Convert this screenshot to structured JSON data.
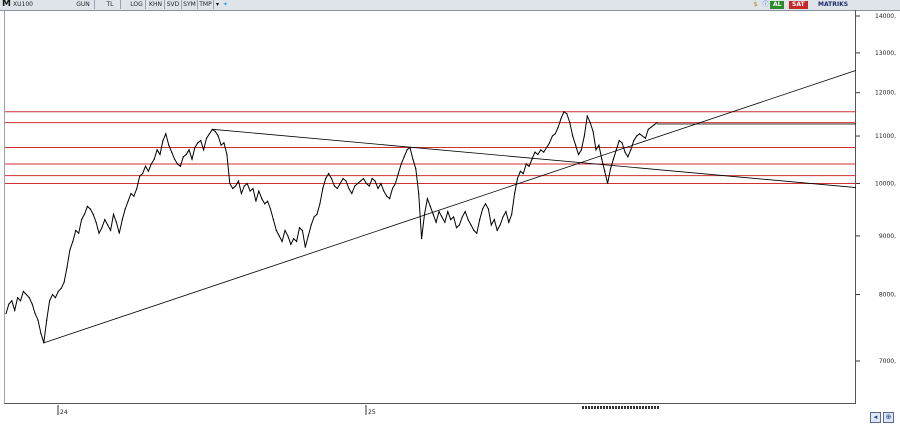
{
  "toolbar": {
    "logo": "M",
    "symbol": "XU100",
    "buttons": [
      "GUN",
      "TL",
      "LOG",
      "KHN",
      "SVD",
      "SYM",
      "TMP"
    ],
    "buy_label": "AL",
    "sell_label": "SAT",
    "matriks_label": "MATRIKS",
    "icons": [
      "chevron-down-icon",
      "twitter-icon",
      "dollar-icon",
      "info-icon"
    ]
  },
  "colors": {
    "price_line": "#000000",
    "trendline": "#000000",
    "horizontal_levels": "#d03030",
    "resistance_line": "#000000",
    "buy": "#2e8b2e",
    "sell": "#c62828"
  },
  "chart_data": {
    "type": "line",
    "title": "",
    "xlabel": "",
    "ylabel": "",
    "ylim": [
      6500,
      14300
    ],
    "y_ticks": [
      7000,
      8000,
      9000,
      10000,
      11000,
      12000,
      13000,
      14000
    ],
    "y_tick_labels": [
      "7000,",
      "8000,",
      "9000,",
      "10000,",
      "11000,",
      "12000,",
      "13000,",
      "14000,"
    ],
    "x_tick_labels": [
      "24",
      "25"
    ],
    "grid": false,
    "series": [
      {
        "values": [
          7700,
          7850,
          7900,
          7750,
          7950,
          7900,
          8050,
          8000,
          7950,
          7850,
          7700,
          7600,
          7400,
          7260,
          7600,
          7900,
          8000,
          7950,
          8050,
          8100,
          8200,
          8450,
          8750,
          8900,
          9100,
          9050,
          9300,
          9400,
          9550,
          9500,
          9400,
          9250,
          9050,
          9150,
          9300,
          9200,
          9100,
          9400,
          9250,
          9050,
          9300,
          9500,
          9650,
          9800,
          9750,
          9900,
          10150,
          10200,
          10350,
          10250,
          10400,
          10500,
          10700,
          10600,
          10900,
          11050,
          10800,
          10650,
          10500,
          10400,
          10350,
          10550,
          10600,
          10700,
          10500,
          10750,
          10850,
          10900,
          10700,
          10950,
          11050,
          11150,
          11100,
          11000,
          10800,
          10850,
          10600,
          10000,
          9900,
          9950,
          10050,
          9800,
          9950,
          10000,
          9850,
          9900,
          9650,
          9850,
          9700,
          9600,
          9650,
          9500,
          9300,
          9100,
          9000,
          8900,
          9100,
          9000,
          8850,
          8950,
          8900,
          9150,
          9100,
          8800,
          9000,
          9200,
          9350,
          9400,
          9600,
          9900,
          10100,
          10200,
          10100,
          9950,
          9900,
          10000,
          10100,
          10050,
          9900,
          9800,
          9950,
          10000,
          10050,
          10100,
          10000,
          9950,
          10100,
          10050,
          9900,
          10000,
          9850,
          9750,
          9700,
          9900,
          10000,
          10200,
          10400,
          10550,
          10700,
          10750,
          10500,
          10300,
          9800,
          8950,
          9400,
          9700,
          9550,
          9400,
          9250,
          9450,
          9350,
          9250,
          9450,
          9300,
          9350,
          9150,
          9200,
          9350,
          9450,
          9300,
          9200,
          9100,
          9050,
          9300,
          9500,
          9600,
          9500,
          9200,
          9300,
          9100,
          9200,
          9350,
          9450,
          9250,
          9400,
          9800,
          10100,
          10250,
          10200,
          10400,
          10350,
          10500,
          10650,
          10600,
          10700,
          10650,
          10750,
          10850,
          11000,
          11050,
          11200,
          11400,
          11550,
          11500,
          11300,
          11000,
          10800,
          10600,
          10700,
          11000,
          11450,
          11300,
          11100,
          10700,
          10800,
          10500,
          10250,
          10000,
          10300,
          10500,
          10700,
          10900,
          10850,
          10650,
          10550,
          10700,
          10900,
          11000,
          11050,
          11000,
          10950,
          11150,
          11200,
          11250,
          11300
        ]
      }
    ],
    "horizontal_levels": [
      11550,
      11300,
      10750,
      10400,
      10160,
      10000
    ],
    "resistance_level": 11270,
    "trendlines": [
      {
        "from_index": 13,
        "from_value": 7260,
        "to_index": 232,
        "to_value": 11150
      },
      {
        "from_index": 71,
        "from_value": 11150,
        "to_index": 232,
        "to_value": 10240
      }
    ]
  }
}
